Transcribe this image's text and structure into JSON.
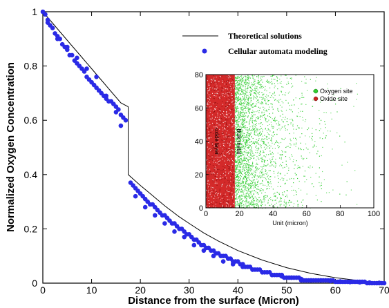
{
  "chart_data": [
    {
      "type": "scatter",
      "title": "",
      "xlabel": "Distance from the surface (Micron)",
      "ylabel": "Normalized Oxygen Concentration",
      "xlim": [
        0,
        70
      ],
      "ylim": [
        0,
        1
      ],
      "xticks": [
        "0",
        "10",
        "20",
        "30",
        "40",
        "50",
        "60",
        "70"
      ],
      "yticks": [
        "0",
        "0.2",
        "0.4",
        "0.6",
        "0.8",
        "1"
      ],
      "grid": false,
      "legend_position": "top-right",
      "series": [
        {
          "name": "Theoretical solutions",
          "kind": "line",
          "color": "#000000",
          "x": [
            0,
            2,
            4,
            6,
            8,
            10,
            12,
            14,
            16,
            17.5,
            17.5,
            20,
            22,
            25,
            28,
            30,
            33,
            36,
            40,
            45,
            50,
            55,
            60,
            65,
            70
          ],
          "y": [
            1.0,
            0.958,
            0.916,
            0.874,
            0.832,
            0.79,
            0.748,
            0.706,
            0.664,
            0.65,
            0.4,
            0.36,
            0.33,
            0.285,
            0.244,
            0.22,
            0.185,
            0.155,
            0.12,
            0.085,
            0.057,
            0.036,
            0.02,
            0.009,
            0.0
          ]
        },
        {
          "name": "Cellular automata modeling",
          "kind": "scatter",
          "color": "#2a2ae6",
          "x": [
            0,
            0.5,
            1,
            1.5,
            2,
            2.5,
            3,
            3.5,
            4,
            4.5,
            5,
            5.5,
            6,
            6.5,
            7,
            7.5,
            8,
            8.5,
            9,
            9.5,
            10,
            10.5,
            11,
            11.5,
            12,
            12.5,
            13,
            13.5,
            14,
            14.5,
            15,
            15.5,
            16,
            16.5,
            17,
            18,
            18.5,
            19,
            19.5,
            20,
            20.5,
            21,
            21.5,
            22,
            22.5,
            23,
            23.5,
            24,
            24.5,
            25,
            25.5,
            26,
            26.5,
            27,
            27.5,
            28,
            28.5,
            29,
            29.5,
            30,
            30.5,
            31,
            31.5,
            32,
            32.5,
            33,
            33.5,
            34,
            34.5,
            35,
            35.5,
            36,
            36.5,
            37,
            37.5,
            38,
            38.5,
            39,
            39.5,
            40,
            40.5,
            41,
            41.5,
            42,
            42.5,
            43,
            43.5,
            44,
            44.5,
            45,
            45.5,
            46,
            46.5,
            47,
            47.5,
            48,
            48.5,
            49,
            49.5,
            50,
            50.5,
            51,
            51.5,
            52,
            52.5,
            53,
            53.5,
            54,
            54.5,
            55,
            55.5,
            56,
            56.5,
            57,
            57.5,
            58,
            58.5,
            59,
            59.5,
            60,
            60.5,
            61,
            61.5,
            62,
            62.5,
            63,
            63.5,
            64,
            64.5,
            65,
            65.5,
            66,
            66.5,
            67,
            67.5,
            68,
            68.5,
            69,
            69.5,
            70,
            1,
            3,
            5,
            7,
            9,
            11,
            13,
            15,
            16,
            19,
            21,
            23,
            25,
            27,
            29,
            31,
            33,
            35,
            37,
            39,
            41,
            43,
            45,
            47,
            49,
            51,
            53,
            55,
            57,
            59,
            61,
            63,
            65,
            67,
            69
          ],
          "y": [
            1.0,
            0.99,
            0.97,
            0.95,
            0.94,
            0.92,
            0.9,
            0.9,
            0.88,
            0.87,
            0.86,
            0.84,
            0.84,
            0.82,
            0.81,
            0.8,
            0.79,
            0.78,
            0.76,
            0.75,
            0.74,
            0.73,
            0.72,
            0.71,
            0.7,
            0.69,
            0.69,
            0.67,
            0.67,
            0.66,
            0.65,
            0.64,
            0.62,
            0.61,
            0.6,
            0.37,
            0.36,
            0.35,
            0.34,
            0.33,
            0.32,
            0.31,
            0.3,
            0.29,
            0.29,
            0.28,
            0.27,
            0.26,
            0.25,
            0.25,
            0.24,
            0.23,
            0.22,
            0.22,
            0.21,
            0.2,
            0.2,
            0.19,
            0.18,
            0.18,
            0.17,
            0.16,
            0.16,
            0.15,
            0.14,
            0.14,
            0.13,
            0.13,
            0.12,
            0.12,
            0.11,
            0.11,
            0.1,
            0.1,
            0.1,
            0.09,
            0.09,
            0.08,
            0.08,
            0.08,
            0.07,
            0.07,
            0.06,
            0.06,
            0.06,
            0.05,
            0.05,
            0.05,
            0.05,
            0.04,
            0.04,
            0.04,
            0.04,
            0.03,
            0.03,
            0.03,
            0.03,
            0.03,
            0.02,
            0.02,
            0.02,
            0.02,
            0.02,
            0.02,
            0.02,
            0.01,
            0.01,
            0.01,
            0.01,
            0.01,
            0.01,
            0.01,
            0.01,
            0.01,
            0.01,
            0.01,
            0.01,
            0.01,
            0.01,
            0.005,
            0.005,
            0.005,
            0.005,
            0.005,
            0.005,
            0.005,
            0.005,
            0.005,
            0.005,
            0.005,
            0.005,
            0.005,
            0.0,
            0.0,
            0.0,
            0.0,
            0.0,
            0.0,
            0.0,
            0.0,
            0.96,
            0.91,
            0.87,
            0.83,
            0.79,
            0.76,
            0.68,
            0.63,
            0.58,
            0.32,
            0.28,
            0.25,
            0.22,
            0.19,
            0.17,
            0.14,
            0.12,
            0.1,
            0.08,
            0.07,
            0.06,
            0.05,
            0.04,
            0.03,
            0.025,
            0.02,
            0.015,
            0.01,
            0.01,
            0.008,
            0.006,
            0.004,
            0.003,
            0.002,
            0.001
          ]
        }
      ]
    },
    {
      "type": "scatter",
      "title": "",
      "xlabel": "Unit (micron)",
      "ylabel": "",
      "xlim": [
        0,
        100
      ],
      "ylim": [
        0,
        80
      ],
      "xticks": [
        "0",
        "20",
        "40",
        "60",
        "80",
        "100"
      ],
      "yticks": [
        "0",
        "20",
        "40",
        "60",
        "80"
      ],
      "legend_position": "top-right",
      "annotations": [
        "oxide layer",
        "Bulk metal"
      ],
      "oxide_boundary_x": 17,
      "series": [
        {
          "name": "Oxygen site",
          "color": "#33cc33"
        },
        {
          "name": "Oxide site",
          "color": "#cc2222"
        }
      ]
    }
  ]
}
